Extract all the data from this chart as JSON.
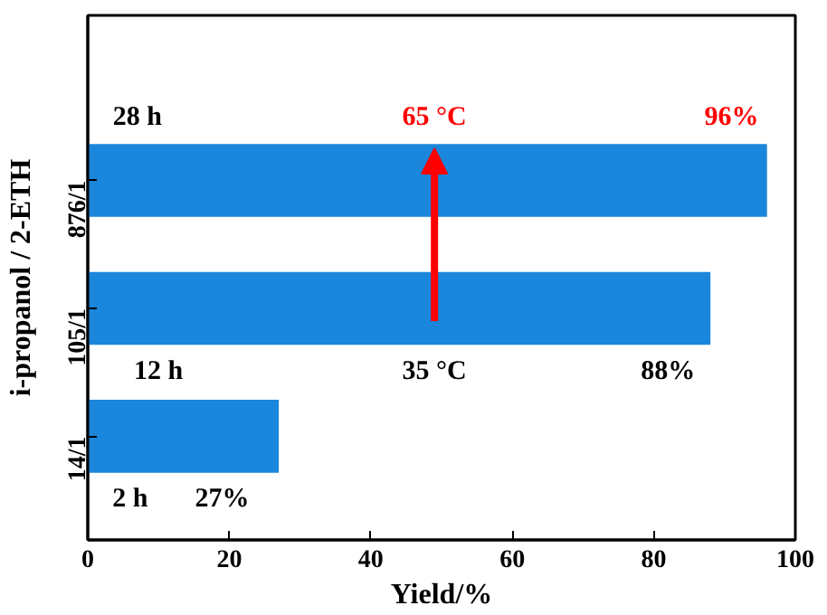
{
  "chart_data": {
    "type": "bar",
    "orientation": "horizontal",
    "categories": [
      "876/1",
      "105/1",
      "14/1"
    ],
    "values": [
      96,
      88,
      27
    ],
    "color": "#1a86dc",
    "xlim": [
      0,
      100
    ],
    "xticks": [
      0,
      20,
      40,
      60,
      80,
      100
    ],
    "xlabel": "Yield/%",
    "ylabel": "i-propanol / 2-ETH",
    "grid": false,
    "annotations": [
      "28 h",
      "65 °C",
      "96%",
      "12 h",
      "35 °C",
      "88%",
      "2 h",
      "27%"
    ]
  }
}
